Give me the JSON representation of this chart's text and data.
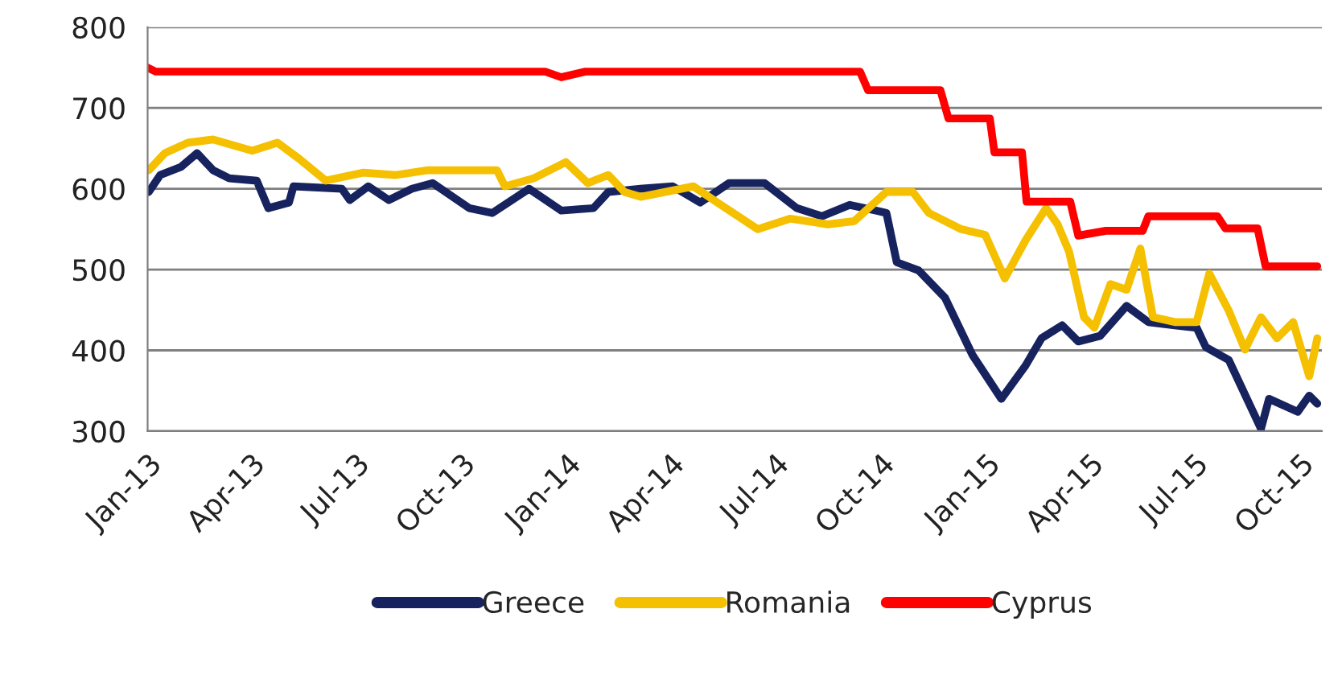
{
  "chart_data": {
    "type": "line",
    "xlim": [
      "2013-01-01",
      "2015-10-20"
    ],
    "xticks": [
      {
        "value": "2013-01-01",
        "label": "Jan-13"
      },
      {
        "value": "2013-04-01",
        "label": "Apr-13"
      },
      {
        "value": "2013-07-01",
        "label": "Jul-13"
      },
      {
        "value": "2013-10-01",
        "label": "Oct-13"
      },
      {
        "value": "2014-01-01",
        "label": "Jan-14"
      },
      {
        "value": "2014-04-01",
        "label": "Apr-14"
      },
      {
        "value": "2014-07-01",
        "label": "Jul-14"
      },
      {
        "value": "2014-10-01",
        "label": "Oct-14"
      },
      {
        "value": "2015-01-01",
        "label": "Jan-15"
      },
      {
        "value": "2015-04-01",
        "label": "Apr-15"
      },
      {
        "value": "2015-07-01",
        "label": "Jul-15"
      },
      {
        "value": "2015-10-01",
        "label": "Oct-15"
      }
    ],
    "ylim": [
      300,
      800
    ],
    "yticks": [
      300,
      400,
      500,
      600,
      700,
      800
    ],
    "grid": "y",
    "legend": "bottom",
    "line_style": "solid",
    "marker": "none",
    "series": [
      {
        "name": "Greece",
        "color": "#17235e",
        "x": [
          "2013-01-02",
          "2013-01-12",
          "2013-01-30",
          "2013-02-13",
          "2013-02-27",
          "2013-03-13",
          "2013-04-06",
          "2013-04-16",
          "2013-05-04",
          "2013-05-08",
          "2013-06-19",
          "2013-06-26",
          "2013-07-12",
          "2013-07-30",
          "2013-08-19",
          "2013-09-06",
          "2013-10-08",
          "2013-10-28",
          "2013-11-29",
          "2013-12-27",
          "2014-01-24",
          "2014-02-06",
          "2014-03-06",
          "2014-04-03",
          "2014-04-27",
          "2014-05-22",
          "2014-06-22",
          "2014-07-20",
          "2014-08-11",
          "2014-09-04",
          "2014-09-27",
          "2014-10-06",
          "2014-10-15",
          "2014-11-03",
          "2014-11-26",
          "2014-12-20",
          "2015-01-14",
          "2015-02-04",
          "2015-02-18",
          "2015-03-08",
          "2015-03-22",
          "2015-04-10",
          "2015-05-03",
          "2015-05-22",
          "2015-06-14",
          "2015-07-03",
          "2015-07-11",
          "2015-07-31",
          "2015-08-28",
          "2015-09-04",
          "2015-09-29",
          "2015-10-09",
          "2015-10-16"
        ],
        "values": [
          596,
          617,
          627,
          644,
          623,
          613,
          610,
          576,
          583,
          603,
          600,
          586,
          603,
          586,
          600,
          607,
          576,
          570,
          600,
          573,
          576,
          596,
          600,
          603,
          583,
          607,
          607,
          576,
          566,
          580,
          573,
          570,
          509,
          499,
          465,
          394,
          340,
          381,
          415,
          431,
          411,
          418,
          455,
          435,
          431,
          428,
          404,
          388,
          303,
          340,
          324,
          344,
          334
        ]
      },
      {
        "name": "Romania",
        "color": "#f5c000",
        "x": [
          "2013-01-02",
          "2013-01-16",
          "2013-02-05",
          "2013-02-27",
          "2013-04-02",
          "2013-04-24",
          "2013-05-13",
          "2013-06-05",
          "2013-07-08",
          "2013-08-05",
          "2013-09-02",
          "2013-10-04",
          "2013-11-01",
          "2013-11-08",
          "2013-12-03",
          "2013-12-31",
          "2014-01-19",
          "2014-02-06",
          "2014-02-20",
          "2014-03-06",
          "2014-04-21",
          "2014-05-15",
          "2014-06-16",
          "2014-07-14",
          "2014-08-16",
          "2014-09-08",
          "2014-10-06",
          "2014-10-29",
          "2014-11-12",
          "2014-12-10",
          "2014-12-31",
          "2015-01-17",
          "2015-02-04",
          "2015-02-22",
          "2015-03-04",
          "2015-03-14",
          "2015-03-27",
          "2015-04-05",
          "2015-04-19",
          "2015-05-03",
          "2015-05-15",
          "2015-05-26",
          "2015-06-14",
          "2015-07-03",
          "2015-07-14",
          "2015-07-31",
          "2015-08-14",
          "2015-08-28",
          "2015-09-11",
          "2015-09-25",
          "2015-10-09",
          "2015-10-16"
        ],
        "values": [
          623,
          644,
          657,
          661,
          647,
          657,
          637,
          610,
          620,
          617,
          623,
          623,
          623,
          603,
          613,
          633,
          607,
          617,
          596,
          590,
          603,
          580,
          550,
          563,
          556,
          560,
          596,
          596,
          570,
          550,
          543,
          489,
          536,
          576,
          556,
          522,
          441,
          428,
          482,
          475,
          526,
          441,
          435,
          435,
          495,
          449,
          401,
          441,
          415,
          435,
          368,
          415
        ]
      },
      {
        "name": "Cyprus",
        "color": "#ff0000",
        "x": [
          "2013-01-01",
          "2013-01-08",
          "2013-12-13",
          "2013-12-27",
          "2014-01-17",
          "2014-09-13",
          "2014-09-20",
          "2014-11-22",
          "2014-11-29",
          "2015-01-04",
          "2015-01-08",
          "2015-02-01",
          "2015-02-05",
          "2015-03-15",
          "2015-03-22",
          "2015-04-15",
          "2015-05-17",
          "2015-05-22",
          "2015-07-21",
          "2015-07-28",
          "2015-08-25",
          "2015-09-01",
          "2015-10-16"
        ],
        "values": [
          750,
          745,
          745,
          738,
          745,
          745,
          722,
          722,
          687,
          687,
          645,
          645,
          584,
          584,
          542,
          548,
          548,
          566,
          566,
          551,
          551,
          504,
          504
        ]
      }
    ]
  }
}
